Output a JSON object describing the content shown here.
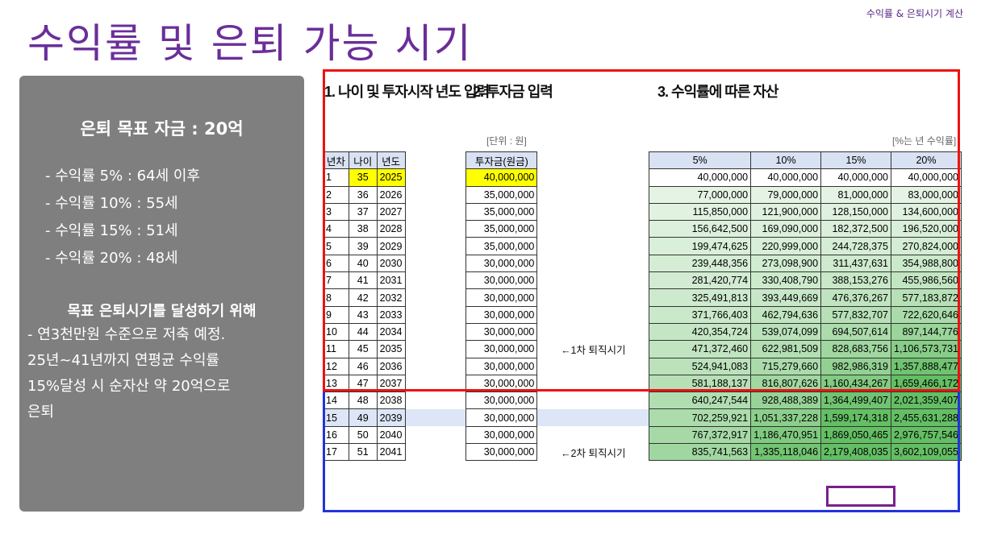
{
  "top_right": "수익률 & 은퇴시기 계산",
  "title": "수익률 및 은퇴 가능 시기",
  "panel": {
    "goal": "은퇴 목표 자금 : 20억",
    "rates": [
      "- 수익률   5% : 64세 이후",
      "- 수익률 10% : 55세",
      "- 수익률 15% : 51세",
      "- 수익률 20% : 48세"
    ],
    "plan_head": "목표 은퇴시기를 달성하기 위해",
    "plan_lines": [
      "- 연3천만원 수준으로 저축 예정.",
      "25년~41년까지 연평균 수익률",
      "15%달성 시 순자산 약 20억으로",
      "은퇴"
    ]
  },
  "sheet": {
    "section1": "1. 나이 및 투자시작 년도 입력",
    "section2": "2. 투자금 입력",
    "section3": "3. 수익률에 따른 자산",
    "unit_left": "[단위 : 원]",
    "unit_right": "[%는 년 수익률]",
    "headers": [
      "년차",
      "나이",
      "년도",
      "투자금(원금)",
      "5%",
      "10%",
      "15%",
      "20%"
    ],
    "notes": {
      "r11": "←1차 퇴직시기",
      "r17": "←2차 퇴직시기"
    },
    "rows": [
      [
        "1",
        "35",
        "2025",
        "40,000,000",
        "40,000,000",
        "40,000,000",
        "40,000,000",
        "40,000,000"
      ],
      [
        "2",
        "36",
        "2026",
        "35,000,000",
        "77,000,000",
        "79,000,000",
        "81,000,000",
        "83,000,000"
      ],
      [
        "3",
        "37",
        "2027",
        "35,000,000",
        "115,850,000",
        "121,900,000",
        "128,150,000",
        "134,600,000"
      ],
      [
        "4",
        "38",
        "2028",
        "35,000,000",
        "156,642,500",
        "169,090,000",
        "182,372,500",
        "196,520,000"
      ],
      [
        "5",
        "39",
        "2029",
        "35,000,000",
        "199,474,625",
        "220,999,000",
        "244,728,375",
        "270,824,000"
      ],
      [
        "6",
        "40",
        "2030",
        "30,000,000",
        "239,448,356",
        "273,098,900",
        "311,437,631",
        "354,988,800"
      ],
      [
        "7",
        "41",
        "2031",
        "30,000,000",
        "281,420,774",
        "330,408,790",
        "388,153,276",
        "455,986,560"
      ],
      [
        "8",
        "42",
        "2032",
        "30,000,000",
        "325,491,813",
        "393,449,669",
        "476,376,267",
        "577,183,872"
      ],
      [
        "9",
        "43",
        "2033",
        "30,000,000",
        "371,766,403",
        "462,794,636",
        "577,832,707",
        "722,620,646"
      ],
      [
        "10",
        "44",
        "2034",
        "30,000,000",
        "420,354,724",
        "539,074,099",
        "694,507,614",
        "897,144,776"
      ],
      [
        "11",
        "45",
        "2035",
        "30,000,000",
        "471,372,460",
        "622,981,509",
        "828,683,756",
        "1,106,573,731"
      ],
      [
        "12",
        "46",
        "2036",
        "30,000,000",
        "524,941,083",
        "715,279,660",
        "982,986,319",
        "1,357,888,477"
      ],
      [
        "13",
        "47",
        "2037",
        "30,000,000",
        "581,188,137",
        "816,807,626",
        "1,160,434,267",
        "1,659,466,172"
      ],
      [
        "14",
        "48",
        "2038",
        "30,000,000",
        "640,247,544",
        "928,488,389",
        "1,364,499,407",
        "2,021,359,407"
      ],
      [
        "15",
        "49",
        "2039",
        "30,000,000",
        "702,259,921",
        "1,051,337,228",
        "1,599,174,318",
        "2,455,631,288"
      ],
      [
        "16",
        "50",
        "2040",
        "30,000,000",
        "767,372,917",
        "1,186,470,951",
        "1,869,050,465",
        "2,976,757,546"
      ],
      [
        "17",
        "51",
        "2041",
        "30,000,000",
        "835,741,563",
        "1,335,118,046",
        "2,179,408,035",
        "3,602,109,055"
      ]
    ]
  }
}
